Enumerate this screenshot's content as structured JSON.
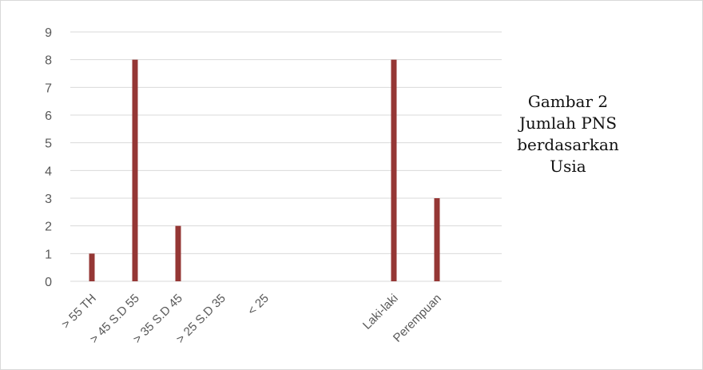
{
  "chart_data": {
    "type": "bar",
    "categories": [
      "> 55 TH",
      "> 45 S.D 55",
      "> 35 S.D 45",
      "> 25 S.D 35",
      "< 25",
      "",
      "",
      "Laki-laki",
      "Perempuan",
      ""
    ],
    "values": [
      1,
      8,
      2,
      0,
      0,
      0,
      0,
      8,
      3,
      0
    ],
    "title": "",
    "xlabel": "",
    "ylabel": "",
    "ylim": [
      0,
      9
    ],
    "yticks": [
      "0",
      "1",
      "2",
      "3",
      "4",
      "5",
      "6",
      "7",
      "8",
      "9"
    ],
    "grid": true,
    "legend": "none"
  },
  "side_title": {
    "lines": [
      "Gambar 2",
      "Jumlah PNS",
      "berdasarkan",
      "Usia"
    ]
  },
  "colors": {
    "bar": "#953735",
    "grid": "#d9d9d9",
    "text": "#595959"
  }
}
